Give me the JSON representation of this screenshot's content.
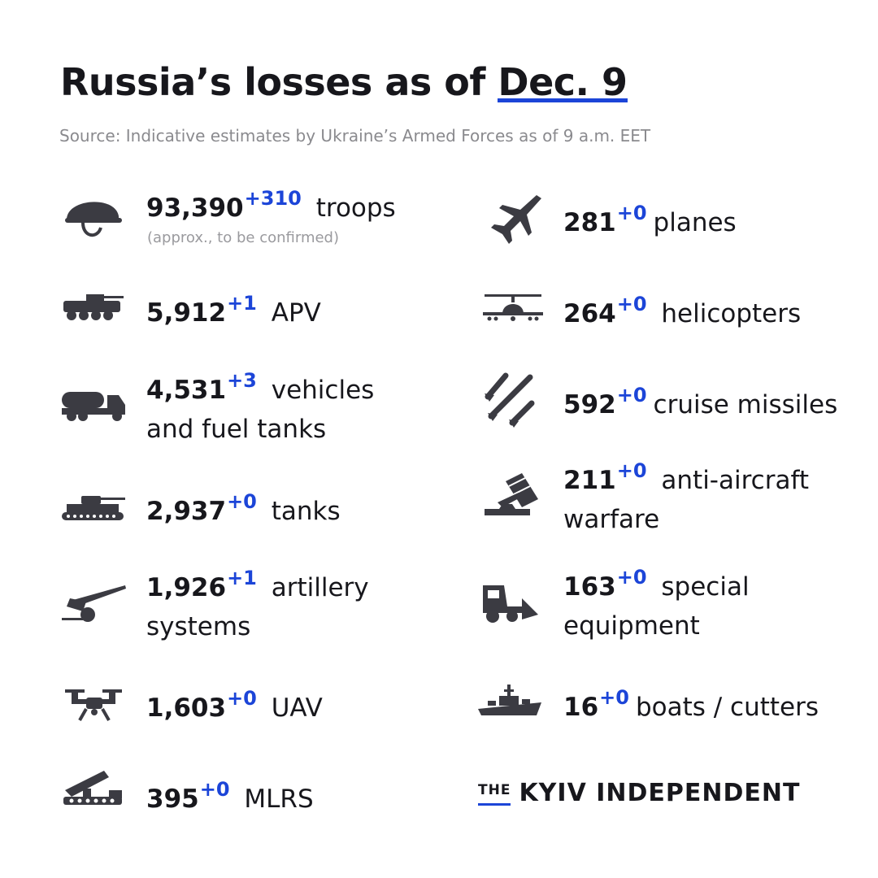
{
  "title": {
    "prefix": "Russia’s losses as of",
    "date": "Dec. 9"
  },
  "source": "Source: Indicative estimates by Ukraine’s Armed Forces as of 9 a.m. EET",
  "accent_color": "#1c45d8",
  "left": [
    {
      "icon": "helmet-icon",
      "value": "93,390",
      "delta": "+310",
      "label": "troops",
      "note": "(approx., to be confirmed)"
    },
    {
      "icon": "apv-icon",
      "value": "5,912",
      "delta": "+1",
      "label": "APV"
    },
    {
      "icon": "fuel-truck-icon",
      "value": "4,531",
      "delta": "+3",
      "label": "vehicles",
      "label2": "and fuel tanks"
    },
    {
      "icon": "tank-icon",
      "value": "2,937",
      "delta": "+0",
      "label": "tanks"
    },
    {
      "icon": "artillery-icon",
      "value": "1,926",
      "delta": "+1",
      "label": "artillery",
      "label2": "systems"
    },
    {
      "icon": "drone-icon",
      "value": "1,603",
      "delta": "+0",
      "label": "UAV"
    },
    {
      "icon": "mlrs-icon",
      "value": "395",
      "delta": "+0",
      "label": "MLRS"
    }
  ],
  "right": [
    {
      "icon": "plane-icon",
      "value": "281",
      "delta": "+0",
      "label": "planes"
    },
    {
      "icon": "helicopter-icon",
      "value": "264",
      "delta": "+0",
      "label": "helicopters"
    },
    {
      "icon": "missiles-icon",
      "value": "592",
      "delta": "+0",
      "label": "cruise missiles"
    },
    {
      "icon": "anti-aircraft-icon",
      "value": "211",
      "delta": "+0",
      "label": "anti-aircraft",
      "label2": "warfare"
    },
    {
      "icon": "special-equipment-icon",
      "value": "163",
      "delta": "+0",
      "label": "special",
      "label2": "equipment"
    },
    {
      "icon": "boat-icon",
      "value": "16",
      "delta": "+0",
      "label": "boats / cutters"
    }
  ],
  "brand": {
    "the": "THE",
    "name": "KYIV INDEPENDENT"
  }
}
